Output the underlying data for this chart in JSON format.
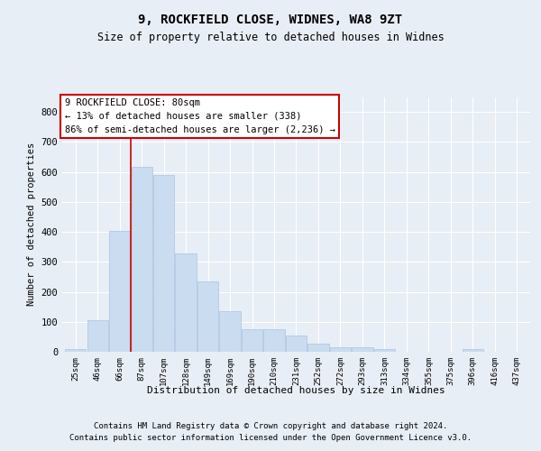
{
  "title1": "9, ROCKFIELD CLOSE, WIDNES, WA8 9ZT",
  "title2": "Size of property relative to detached houses in Widnes",
  "xlabel": "Distribution of detached houses by size in Widnes",
  "ylabel": "Number of detached properties",
  "categories": [
    "25sqm",
    "46sqm",
    "66sqm",
    "87sqm",
    "107sqm",
    "128sqm",
    "149sqm",
    "169sqm",
    "190sqm",
    "210sqm",
    "231sqm",
    "252sqm",
    "272sqm",
    "293sqm",
    "313sqm",
    "334sqm",
    "355sqm",
    "375sqm",
    "396sqm",
    "416sqm",
    "437sqm"
  ],
  "values": [
    8,
    105,
    404,
    616,
    590,
    328,
    235,
    135,
    76,
    76,
    55,
    27,
    16,
    16,
    8,
    0,
    0,
    0,
    8,
    0,
    0
  ],
  "bar_color": "#c9dcf0",
  "bar_edge_color": "#aac4e0",
  "vline_color": "#cc0000",
  "annotation_text": "9 ROCKFIELD CLOSE: 80sqm\n← 13% of detached houses are smaller (338)\n86% of semi-detached houses are larger (2,236) →",
  "annotation_box_color": "#ffffff",
  "annotation_box_edge": "#cc0000",
  "footer1": "Contains HM Land Registry data © Crown copyright and database right 2024.",
  "footer2": "Contains public sector information licensed under the Open Government Licence v3.0.",
  "ylim": [
    0,
    850
  ],
  "yticks": [
    0,
    100,
    200,
    300,
    400,
    500,
    600,
    700,
    800
  ],
  "background_color": "#e8eef5",
  "plot_bg_color": "#e8eef5",
  "grid_color": "#ffffff"
}
